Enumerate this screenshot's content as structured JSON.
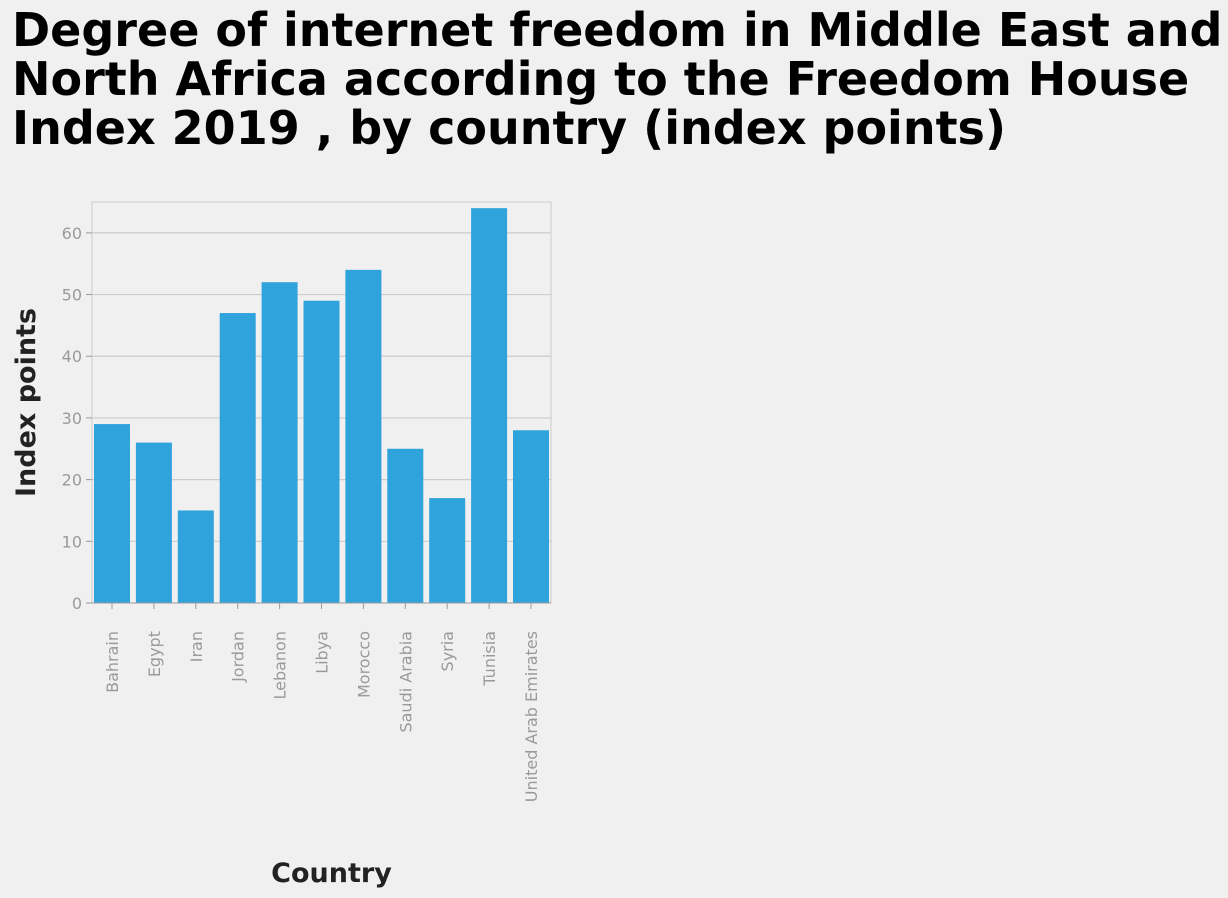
{
  "chart_data": {
    "type": "bar",
    "title": "Degree of internet freedom in Middle East and North Africa according to the Freedom House Index 2019 , by country (index points)",
    "xlabel": "Country",
    "ylabel": "Index points",
    "categories": [
      "Bahrain",
      "Egypt",
      "Iran",
      "Jordan",
      "Lebanon",
      "Libya",
      "Morocco",
      "Saudi Arabia",
      "Syria",
      "Tunisia",
      "United Arab Emirates"
    ],
    "values": [
      29,
      26,
      15,
      47,
      52,
      49,
      54,
      25,
      17,
      64,
      28
    ],
    "ylim": [
      0,
      65
    ],
    "yticks": [
      0,
      10,
      20,
      30,
      40,
      50,
      60
    ],
    "grid": true,
    "legend": "none",
    "colors": {
      "bar": "#2fa3dc",
      "grid": "#cccccc",
      "background": "#f0f0f0",
      "tick_text": "#9a9a9a",
      "title_text": "#000000"
    }
  }
}
